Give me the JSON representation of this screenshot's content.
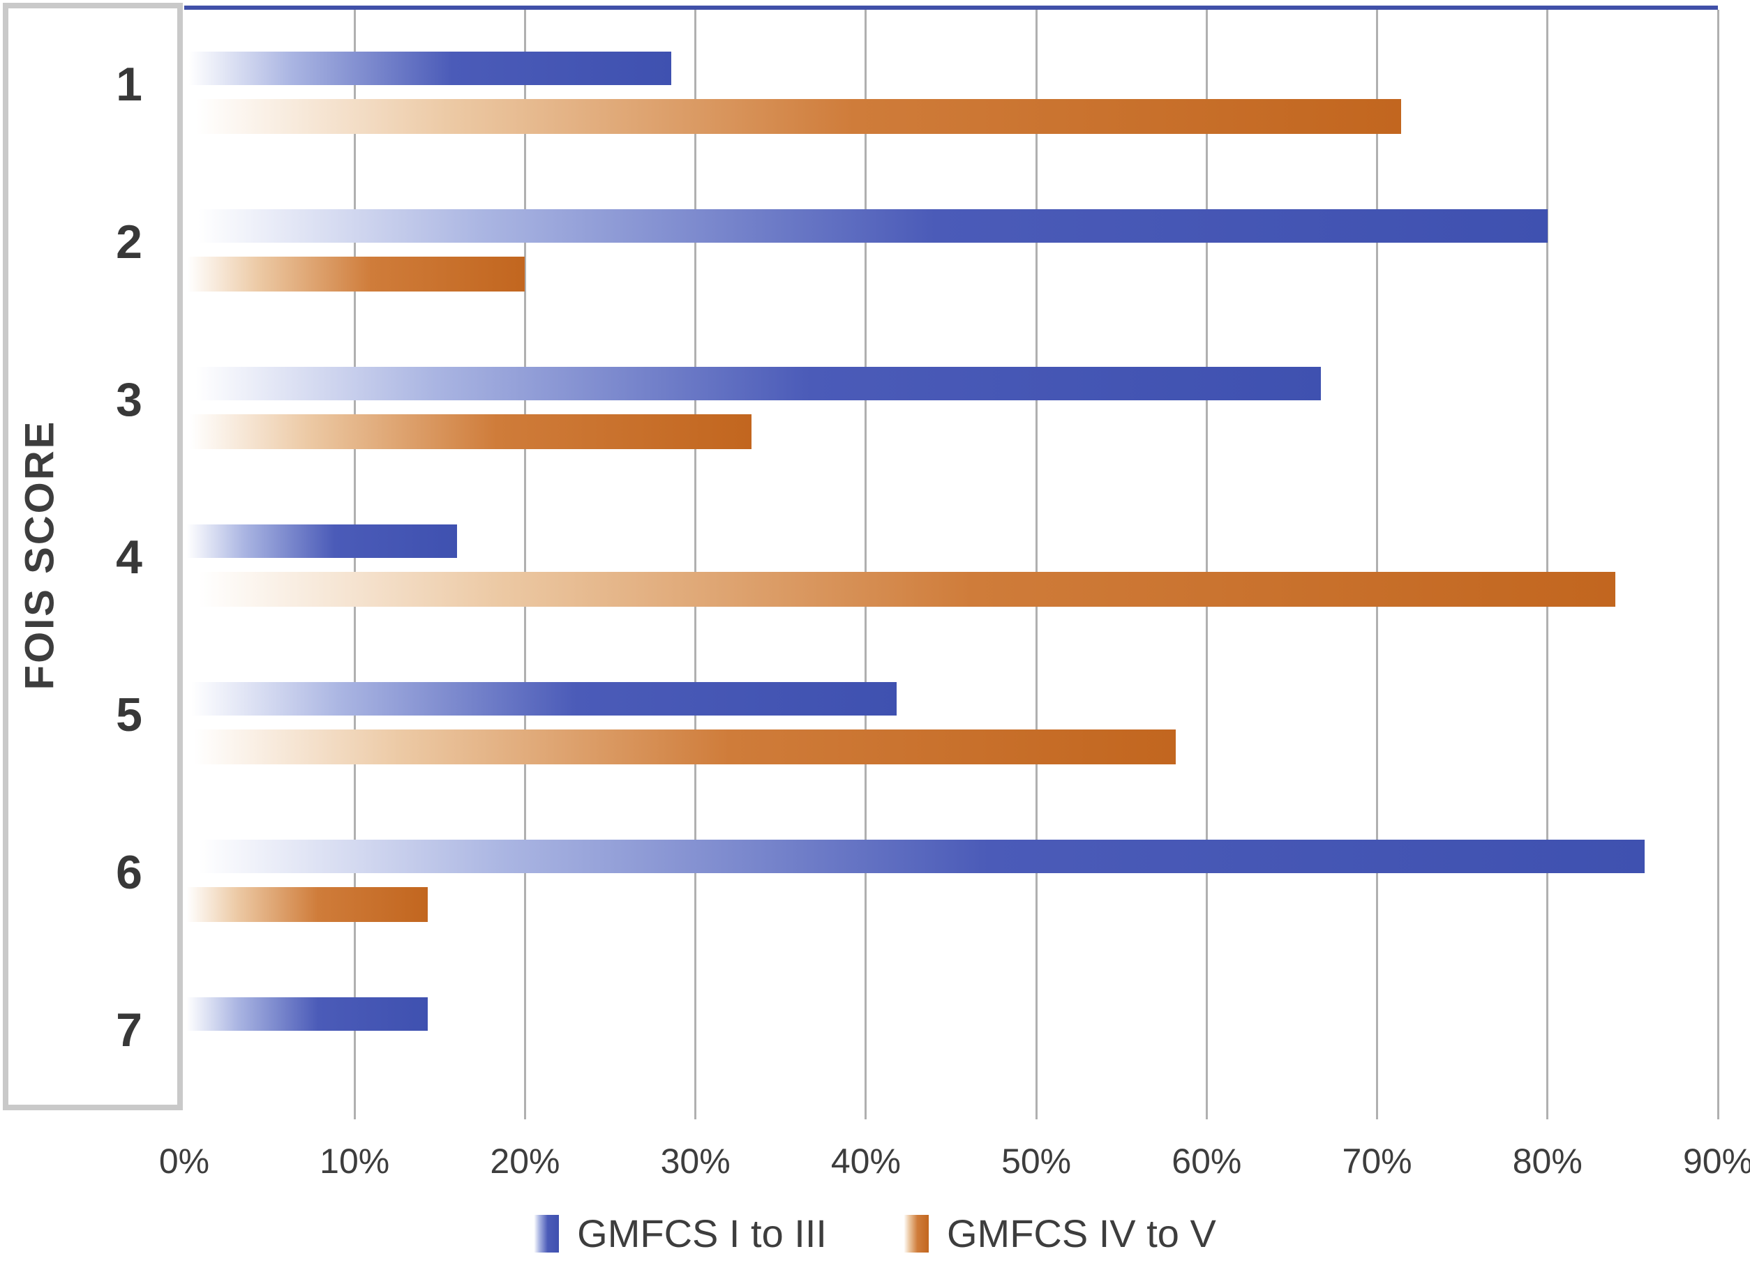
{
  "chart_data": {
    "type": "bar",
    "orientation": "horizontal",
    "title": "",
    "xlabel": "",
    "ylabel": "FOIS SCORE",
    "categories": [
      "1",
      "2",
      "3",
      "4",
      "5",
      "6",
      "7"
    ],
    "series": [
      {
        "name": "GMFCS I to III",
        "values": [
          28.6,
          80,
          66.7,
          16,
          41.8,
          85.7,
          14.3
        ],
        "color": "#4b5bb8",
        "color_dark": "#3f51b0",
        "color_light": "#aab5e2"
      },
      {
        "name": "GMFCS IV to V",
        "values": [
          71.4,
          20,
          33.3,
          84,
          58.2,
          14.3,
          0
        ],
        "color": "#cf7c3a",
        "color_dark": "#c2661f",
        "color_light": "#ecc9a4"
      }
    ],
    "x_ticks": [
      "0%",
      "10%",
      "20%",
      "30%",
      "40%",
      "50%",
      "60%",
      "70%",
      "80%",
      "90%"
    ],
    "xlim": [
      0,
      90
    ],
    "grid": true,
    "legend_position": "bottom"
  },
  "colors": {
    "grid": "#b0b0b0",
    "axis_box_border": "#c9c9c9",
    "plot_top_border": "#4050a8",
    "text": "#3d3d3d",
    "background": "#ffffff"
  }
}
